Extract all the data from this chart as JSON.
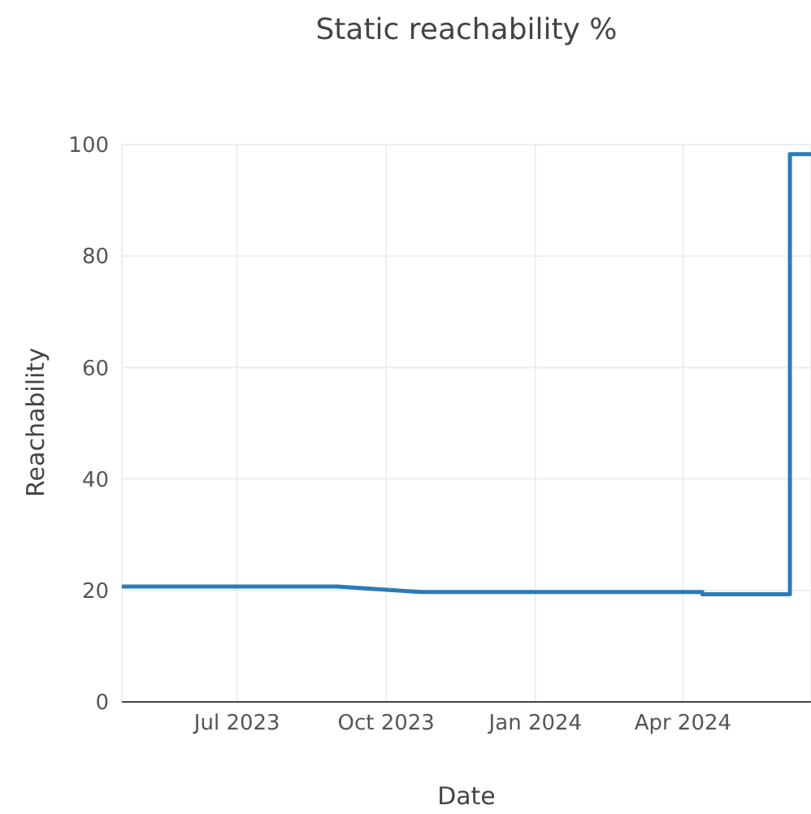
{
  "chart_data": {
    "type": "line",
    "title": "Static reachability %",
    "xlabel": "Date",
    "ylabel": "Reachability",
    "x": [
      "2023-04-21",
      "2023-09-01",
      "2023-10-23",
      "2024-04-13",
      "2024-04-13",
      "2024-06-06",
      "2024-06-06",
      "2024-06-19"
    ],
    "series": [
      {
        "color": "#2b7bb9",
        "values": [
          20.7,
          20.7,
          19.7,
          19.7,
          19.3,
          19.3,
          98.3,
          98.3
        ]
      }
    ],
    "xlim": [
      "2023-04-21",
      "2024-06-19"
    ],
    "xticks": [
      {
        "value": "2023-07-01",
        "label": "Jul 2023"
      },
      {
        "value": "2023-10-01",
        "label": "Oct 2023"
      },
      {
        "value": "2024-01-01",
        "label": "Jan 2024"
      },
      {
        "value": "2024-04-01",
        "label": "Apr 2024"
      }
    ],
    "ylim": [
      0,
      100
    ],
    "yticks": [
      0,
      20,
      40,
      60,
      80,
      100
    ],
    "grid": true,
    "legend": false,
    "marker": "none",
    "line_style": "solid"
  }
}
